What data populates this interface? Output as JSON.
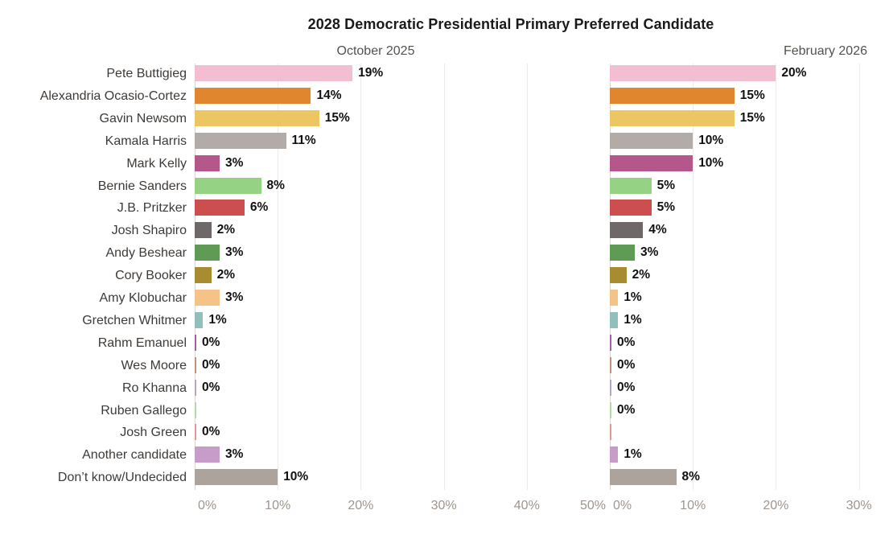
{
  "title": "2028 Democratic Presidential Primary Preferred Candidate",
  "panels": [
    {
      "label": "October 2025"
    },
    {
      "label": "February 2026"
    }
  ],
  "chart_data": {
    "type": "bar",
    "orientation": "horizontal",
    "title": "2028 Democratic Presidential Primary Preferred Candidate",
    "unit": "percent",
    "legend": "none",
    "grid": "vertical-light",
    "categories": [
      "Pete Buttigieg",
      "Alexandria Ocasio-Cortez",
      "Gavin Newsom",
      "Kamala Harris",
      "Mark Kelly",
      "Bernie Sanders",
      "J.B. Pritzker",
      "Josh Shapiro",
      "Andy Beshear",
      "Cory Booker",
      "Amy Klobuchar",
      "Gretchen Whitmer",
      "Rahm Emanuel",
      "Wes Moore",
      "Ro Khanna",
      "Ruben Gallego",
      "Josh Green",
      "Another candidate",
      "Don’t know/Undecided"
    ],
    "series": [
      {
        "name": "October 2025",
        "values": [
          19,
          14,
          15,
          11,
          3,
          8,
          6,
          2,
          3,
          2,
          3,
          1,
          0,
          0,
          0,
          0,
          0,
          3,
          10
        ],
        "labels": [
          "19%",
          "14%",
          "15%",
          "11%",
          "3%",
          "8%",
          "6%",
          "2%",
          "3%",
          "2%",
          "3%",
          "1%",
          "0%",
          "0%",
          "0%",
          "",
          "0%",
          "3%",
          "10%"
        ]
      },
      {
        "name": "February 2026",
        "values": [
          20,
          15,
          15,
          10,
          10,
          5,
          5,
          4,
          3,
          2,
          1,
          1,
          0,
          0,
          0,
          0,
          0,
          1,
          8
        ],
        "labels": [
          "20%",
          "15%",
          "15%",
          "10%",
          "10%",
          "5%",
          "5%",
          "4%",
          "3%",
          "2%",
          "1%",
          "1%",
          "0%",
          "0%",
          "0%",
          "0%",
          "",
          "1%",
          "8%"
        ]
      }
    ],
    "colors": [
      "#f3bed1",
      "#e0862f",
      "#ebc662",
      "#b3aba7",
      "#b5578b",
      "#95d283",
      "#cd4e4e",
      "#6f6868",
      "#5f9b55",
      "#a88c32",
      "#f5c287",
      "#91bfbc",
      "#a55fa3",
      "#c5917f",
      "#b3a6c6",
      "#b6d8a6",
      "#e69793",
      "#c89cc9",
      "#aca49c"
    ],
    "axis": {
      "left_panel_range": [
        0,
        50
      ],
      "right_panel_range": [
        0,
        31
      ],
      "left_ticks": [
        {
          "label": "0%",
          "pct": 0
        },
        {
          "label": "10%",
          "pct": 10
        },
        {
          "label": "20%",
          "pct": 20
        },
        {
          "label": "30%",
          "pct": 30
        },
        {
          "label": "40%",
          "pct": 40
        },
        {
          "label": "50%",
          "pct": 50
        }
      ],
      "right_ticks": [
        {
          "label": "0%",
          "pct": 0
        },
        {
          "label": "10%",
          "pct": 10
        },
        {
          "label": "20%",
          "pct": 20
        },
        {
          "label": "30%",
          "pct": 30
        }
      ]
    }
  }
}
